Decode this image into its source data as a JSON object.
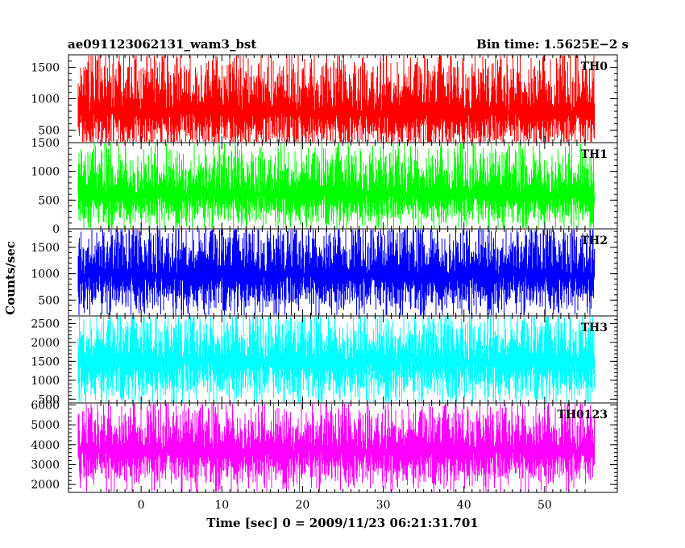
{
  "header": {
    "left_title": "ae091123062131_wam3_bst",
    "right_title": "Bin time: 1.5625E−2 s"
  },
  "chart_data": {
    "type": "line",
    "title": "ae091123062131_wam3_bst",
    "bin_time": "Bin time: 1.5625E−2 s",
    "xlabel": "Time [sec] 0 = 2009/11/23 06:21:31.701",
    "ylabel": "Counts/sec",
    "xlim": [
      -9,
      59
    ],
    "x_data_range": [
      -7.8,
      56.2
    ],
    "x_ticks": [
      0,
      10,
      20,
      30,
      40,
      50
    ],
    "x_tick_labels": [
      "0",
      "10",
      "20",
      "30",
      "40",
      "50"
    ],
    "panels": [
      {
        "name": "TH0",
        "color": "#ff0000",
        "ylim": [
          300,
          1700
        ],
        "mean": 780,
        "noise_low": 560,
        "noise_high": 820,
        "y_ticks": [
          500,
          1000,
          1500
        ],
        "y_tick_labels": [
          "500",
          "1000",
          "1500"
        ]
      },
      {
        "name": "TH1",
        "color": "#00ff00",
        "ylim": [
          0,
          1500
        ],
        "mean": 600,
        "noise_low": 520,
        "noise_high": 760,
        "y_ticks": [
          0,
          500,
          1000,
          1500
        ],
        "y_tick_labels": [
          "0",
          "500",
          "1000",
          "1500"
        ]
      },
      {
        "name": "TH2",
        "color": "#0000ff",
        "ylim": [
          200,
          1850
        ],
        "mean": 980,
        "noise_low": 680,
        "noise_high": 880,
        "y_ticks": [
          500,
          1000,
          1500
        ],
        "y_tick_labels": [
          "500",
          "1000",
          "1500"
        ]
      },
      {
        "name": "TH3",
        "color": "#00ffff",
        "ylim": [
          400,
          2700
        ],
        "mean": 1500,
        "noise_low": 1000,
        "noise_high": 1150,
        "y_ticks": [
          500,
          1000,
          1500,
          2000,
          2500
        ],
        "y_tick_labels": [
          "500",
          "1000",
          "1500",
          "2000",
          "2500"
        ]
      },
      {
        "name": "TH0123",
        "color": "#ff00ff",
        "ylim": [
          1600,
          6100
        ],
        "mean": 3700,
        "noise_low": 1700,
        "noise_high": 2100,
        "y_ticks": [
          2000,
          3000,
          4000,
          5000,
          6000
        ],
        "y_tick_labels": [
          "2000",
          "3000",
          "4000",
          "5000",
          "6000"
        ]
      }
    ]
  }
}
